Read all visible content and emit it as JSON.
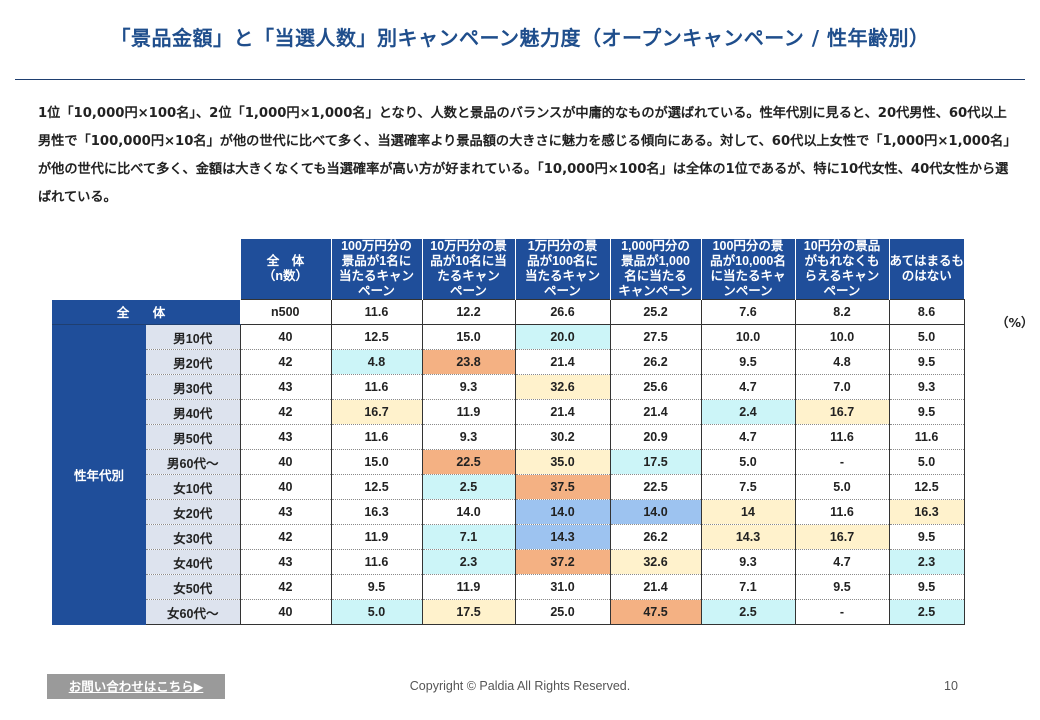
{
  "title": "「景品金額」と「当選人数」別キャンペーン魅力度（オープンキャンペーン / 性年齢別）",
  "description": "1位「10,000円×100名」、2位「1,000円×1,000名」となり、人数と景品のバランスが中庸的なものが選ばれている。性年代別に見ると、20代男性、60代以上男性で「100,000円×10名」が他の世代に比べて多く、当選確率より景品額の大きさに魅力を感じる傾向にある。対して、60代以上女性で「1,000円×1,000名」が他の世代に比べて多く、金額は大きくなくても当選確率が高い方が好まれている。「10,000円×100名」は全体の1位であるが、特に10代女性、40代女性から選ばれている。",
  "table": {
    "columns": [
      "全　体\n（n数）",
      "100万円分の\n景品が1名に\n当たるキャン\nペーン",
      "10万円分の景\n品が10名に当\nたるキャン\nペーン",
      "1万円分の景\n品が100名に\n当たるキャン\nペーン",
      "1,000円分の\n景品が1,000\n名に当たる\nキャンペーン",
      "100円分の景\n品が10,000名\nに当たるキャ\nンペーン",
      "10円分の景品\nがもれなくも\nらえるキャン\nペーン",
      "あてはまるも\nのはない"
    ],
    "total": {
      "label": "全 体",
      "n": "n500",
      "values": [
        "11.6",
        "12.2",
        "26.6",
        "25.2",
        "7.6",
        "8.2",
        "8.6"
      ]
    },
    "unit": "（%）",
    "group_label": "性年代別",
    "rows": [
      {
        "label": "男10代",
        "n": "40",
        "values": [
          "12.5",
          "15.0",
          "20.0",
          "27.5",
          "10.0",
          "10.0",
          "5.0"
        ],
        "colors": [
          "",
          "",
          "c",
          "",
          "",
          "",
          ""
        ]
      },
      {
        "label": "男20代",
        "n": "42",
        "values": [
          "4.8",
          "23.8",
          "21.4",
          "26.2",
          "9.5",
          "4.8",
          "9.5"
        ],
        "colors": [
          "c",
          "o",
          "",
          "",
          "",
          "",
          ""
        ]
      },
      {
        "label": "男30代",
        "n": "43",
        "values": [
          "11.6",
          "9.3",
          "32.6",
          "25.6",
          "4.7",
          "7.0",
          "9.3"
        ],
        "colors": [
          "",
          "",
          "y",
          "",
          "",
          "",
          ""
        ]
      },
      {
        "label": "男40代",
        "n": "42",
        "values": [
          "16.7",
          "11.9",
          "21.4",
          "21.4",
          "2.4",
          "16.7",
          "9.5"
        ],
        "colors": [
          "y",
          "",
          "",
          "",
          "c",
          "y",
          ""
        ]
      },
      {
        "label": "男50代",
        "n": "43",
        "values": [
          "11.6",
          "9.3",
          "30.2",
          "20.9",
          "4.7",
          "11.6",
          "11.6"
        ],
        "colors": [
          "",
          "",
          "",
          "",
          "",
          "",
          ""
        ]
      },
      {
        "label": "男60代～",
        "n": "40",
        "values": [
          "15.0",
          "22.5",
          "35.0",
          "17.5",
          "5.0",
          "-",
          "5.0"
        ],
        "colors": [
          "",
          "o",
          "y",
          "c",
          "",
          "",
          ""
        ]
      },
      {
        "label": "女10代",
        "n": "40",
        "values": [
          "12.5",
          "2.5",
          "37.5",
          "22.5",
          "7.5",
          "5.0",
          "12.5"
        ],
        "colors": [
          "",
          "c",
          "o",
          "",
          "",
          "",
          ""
        ]
      },
      {
        "label": "女20代",
        "n": "43",
        "values": [
          "16.3",
          "14.0",
          "14.0",
          "14.0",
          "14",
          "11.6",
          "16.3"
        ],
        "colors": [
          "",
          "",
          "b",
          "b",
          "y",
          "",
          "y"
        ]
      },
      {
        "label": "女30代",
        "n": "42",
        "values": [
          "11.9",
          "7.1",
          "14.3",
          "26.2",
          "14.3",
          "16.7",
          "9.5"
        ],
        "colors": [
          "",
          "c",
          "b",
          "",
          "y",
          "y",
          ""
        ]
      },
      {
        "label": "女40代",
        "n": "43",
        "values": [
          "11.6",
          "2.3",
          "37.2",
          "32.6",
          "9.3",
          "4.7",
          "2.3"
        ],
        "colors": [
          "",
          "c",
          "o",
          "y",
          "",
          "",
          "c"
        ]
      },
      {
        "label": "女50代",
        "n": "42",
        "values": [
          "9.5",
          "11.9",
          "31.0",
          "21.4",
          "7.1",
          "9.5",
          "9.5"
        ],
        "colors": [
          "",
          "",
          "",
          "",
          "",
          "",
          ""
        ]
      },
      {
        "label": "女60代～",
        "n": "40",
        "values": [
          "5.0",
          "17.5",
          "25.0",
          "47.5",
          "2.5",
          "-",
          "2.5"
        ],
        "colors": [
          "c",
          "y",
          "",
          "o",
          "c",
          "",
          "c"
        ]
      }
    ]
  },
  "highlight_colors": {
    "o": "#f4b183",
    "y": "#fff2cc",
    "c": "#ccf5f8",
    "b": "#9dc3f0"
  },
  "footer": {
    "contact_label": "お問い合わせはこちら▶",
    "copyright": "Copyright © Paldia All Rights Reserved.",
    "page_number": "10"
  }
}
